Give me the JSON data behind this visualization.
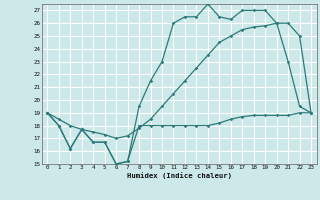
{
  "xlabel": "Humidex (Indice chaleur)",
  "bg_color": "#cce8e8",
  "grid_color": "#ffffff",
  "line_color": "#2d7a7a",
  "xlim": [
    -0.5,
    23.5
  ],
  "ylim": [
    15,
    27.5
  ],
  "yticks": [
    15,
    16,
    17,
    18,
    19,
    20,
    21,
    22,
    23,
    24,
    25,
    26,
    27
  ],
  "xticks": [
    0,
    1,
    2,
    3,
    4,
    5,
    6,
    7,
    8,
    9,
    10,
    11,
    12,
    13,
    14,
    15,
    16,
    17,
    18,
    19,
    20,
    21,
    22,
    23
  ],
  "series1_x": [
    0,
    1,
    2,
    3,
    4,
    5,
    6,
    7,
    8,
    9,
    10,
    11,
    12,
    13,
    14,
    15,
    16,
    17,
    18,
    19,
    20,
    21,
    22,
    23
  ],
  "series1_y": [
    19,
    18,
    16.2,
    17.7,
    16.7,
    16.7,
    15.0,
    15.2,
    18,
    18,
    18,
    18,
    18,
    18,
    18,
    18.2,
    18.5,
    18.7,
    18.8,
    18.8,
    18.8,
    18.8,
    19.0,
    19.0
  ],
  "series2_x": [
    0,
    1,
    2,
    3,
    4,
    5,
    6,
    7,
    8,
    9,
    10,
    11,
    12,
    13,
    14,
    15,
    16,
    17,
    18,
    19,
    20,
    21,
    22,
    23
  ],
  "series2_y": [
    19,
    18,
    16.2,
    17.7,
    16.7,
    16.7,
    15.0,
    15.2,
    19.5,
    21.5,
    23.0,
    26.0,
    26.5,
    26.5,
    27.5,
    26.5,
    26.3,
    27.0,
    27.0,
    27.0,
    26.0,
    23.0,
    19.5,
    19.0
  ],
  "series3_x": [
    0,
    1,
    2,
    3,
    4,
    5,
    6,
    7,
    8,
    9,
    10,
    11,
    12,
    13,
    14,
    15,
    16,
    17,
    18,
    19,
    20,
    21,
    22,
    23
  ],
  "series3_y": [
    19,
    18.5,
    18.0,
    17.7,
    17.5,
    17.3,
    17.0,
    17.2,
    17.8,
    18.5,
    19.5,
    20.5,
    21.5,
    22.5,
    23.5,
    24.5,
    25.0,
    25.5,
    25.7,
    25.8,
    26.0,
    26.0,
    25.0,
    19.0
  ]
}
